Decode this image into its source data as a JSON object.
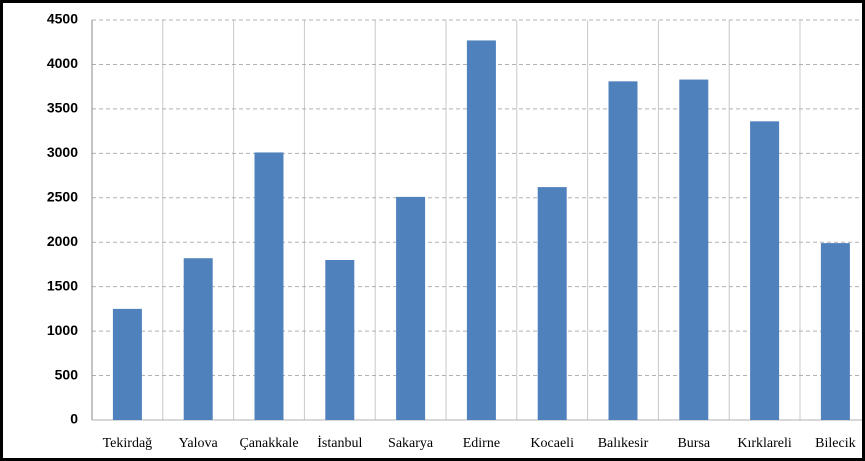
{
  "chart_data": {
    "type": "bar",
    "categories": [
      "Tekirdağ",
      "Yalova",
      "Çanakkale",
      "İstanbul",
      "Sakarya",
      "Edirne",
      "Kocaeli",
      "Balıkesir",
      "Bursa",
      "Kırklareli",
      "Bilecik"
    ],
    "values": [
      1250,
      1820,
      3010,
      1800,
      2510,
      4270,
      2620,
      3810,
      3830,
      3360,
      1990
    ],
    "color": "#4f81bd",
    "ylim": [
      0,
      4500
    ],
    "yticks": [
      0,
      500,
      1000,
      1500,
      2000,
      2500,
      3000,
      3500,
      4000,
      4500
    ],
    "grid": true
  }
}
